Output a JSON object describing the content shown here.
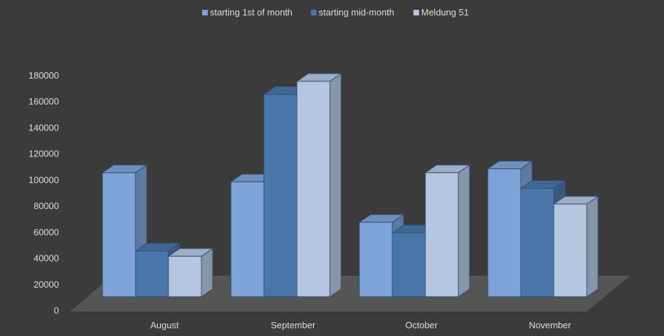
{
  "chart_data": {
    "type": "bar",
    "categories": [
      "August",
      "September",
      "October",
      "November"
    ],
    "series": [
      {
        "name": "starting 1st of month",
        "values": [
          95000,
          88000,
          57000,
          98000
        ],
        "color": "#7ea3d6"
      },
      {
        "name": "starting mid-month",
        "values": [
          35000,
          155000,
          49000,
          83000
        ],
        "color": "#4a75a8"
      },
      {
        "name": "Meldung 51",
        "values": [
          31000,
          165000,
          95000,
          71000
        ],
        "color": "#b4c6e0"
      }
    ],
    "yticks": [
      0,
      20000,
      40000,
      60000,
      80000,
      100000,
      120000,
      140000,
      160000,
      180000
    ],
    "ylim": [
      0,
      180000
    ],
    "legend_position": "top",
    "style": "3d-column",
    "background": "#3b3b3b",
    "floor_color": "#555555",
    "text_color": "#dcdcdc"
  }
}
